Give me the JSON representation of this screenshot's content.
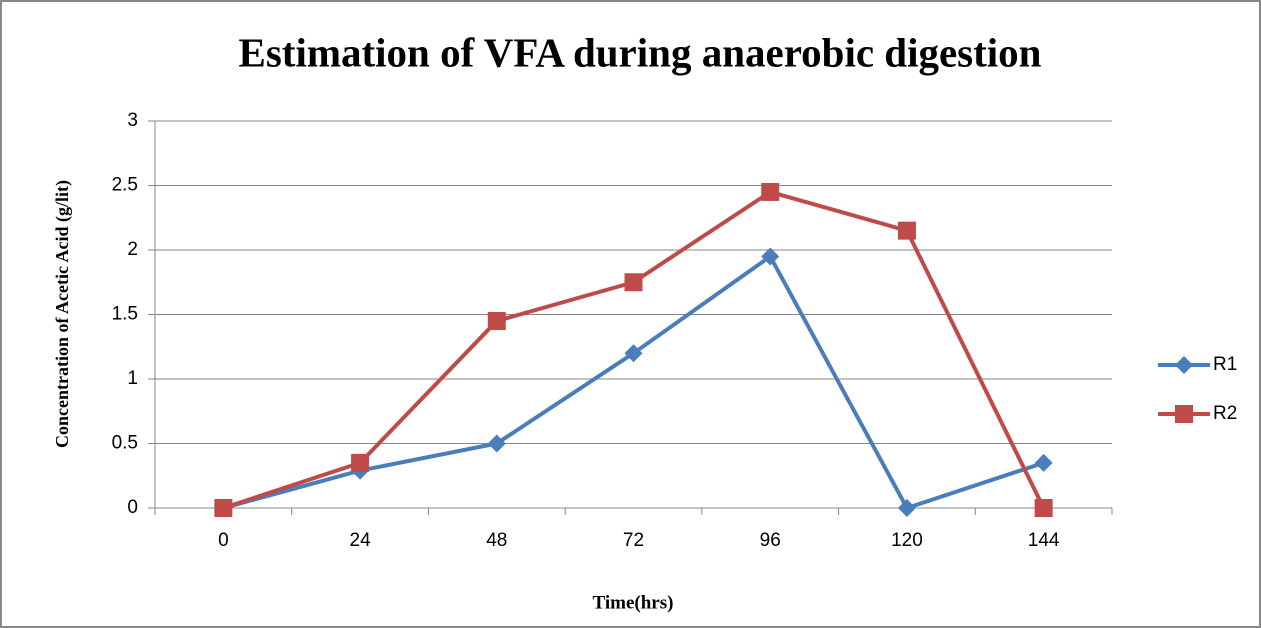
{
  "chart_data": {
    "type": "line",
    "title": "Estimation of VFA during anaerobic digestion",
    "x_label": "Time(hrs)",
    "y_label": "Concentration of Acetic Acid (g/lit)",
    "categories": [
      "0",
      "24",
      "48",
      "72",
      "96",
      "120",
      "144"
    ],
    "series": [
      {
        "name": "R1",
        "color": "#4a7ebb",
        "marker": "diamond",
        "values": [
          0,
          0.29,
          0.5,
          1.2,
          1.95,
          0,
          0.35
        ]
      },
      {
        "name": "R2",
        "color": "#be4b48",
        "marker": "square",
        "values": [
          0,
          0.35,
          1.45,
          1.75,
          2.45,
          2.15,
          0
        ]
      }
    ],
    "ylim": [
      0,
      3
    ],
    "yticks": [
      0,
      0.5,
      1,
      1.5,
      2,
      2.5,
      3
    ],
    "grid": true,
    "legend": "right"
  }
}
